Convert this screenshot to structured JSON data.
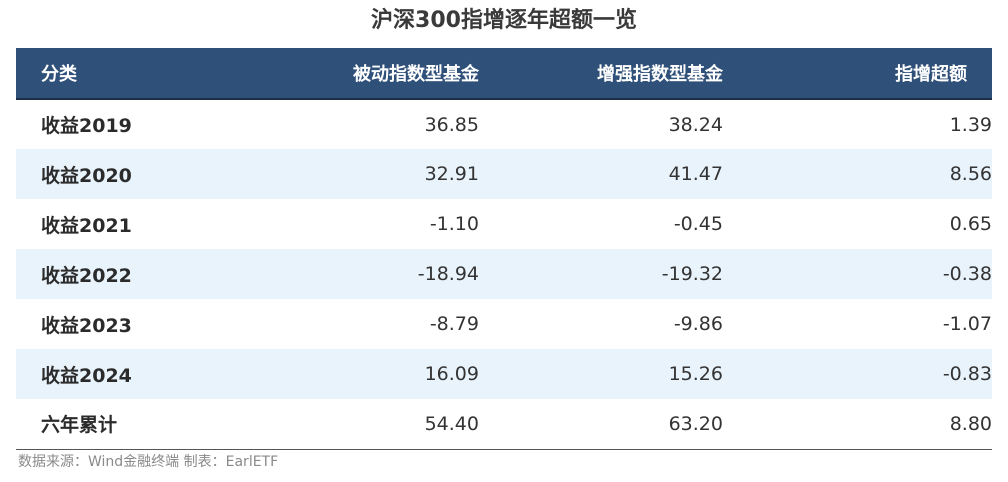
{
  "title": "沪深300指增逐年超额一览",
  "table": {
    "headers": [
      "分类",
      "被动指数型基金",
      "增强指数型基金",
      "指增超额"
    ],
    "rows": [
      [
        "收益2019",
        "36.85",
        "38.24",
        "1.39"
      ],
      [
        "收益2020",
        "32.91",
        "41.47",
        "8.56"
      ],
      [
        "收益2021",
        "-1.10",
        "-0.45",
        "0.65"
      ],
      [
        "收益2022",
        "-18.94",
        "-19.32",
        "-0.38"
      ],
      [
        "收益2023",
        "-8.79",
        "-9.86",
        "-1.07"
      ],
      [
        "收益2024",
        "16.09",
        "15.26",
        "-0.83"
      ],
      [
        "六年累计",
        "54.40",
        "63.20",
        "8.80"
      ]
    ]
  },
  "footer": {
    "source": "数据来源：Wind金融终端 制表：EarlETF"
  },
  "colors": {
    "header_bg": "#2f5079",
    "stripe_bg": "#e8f3fc"
  }
}
